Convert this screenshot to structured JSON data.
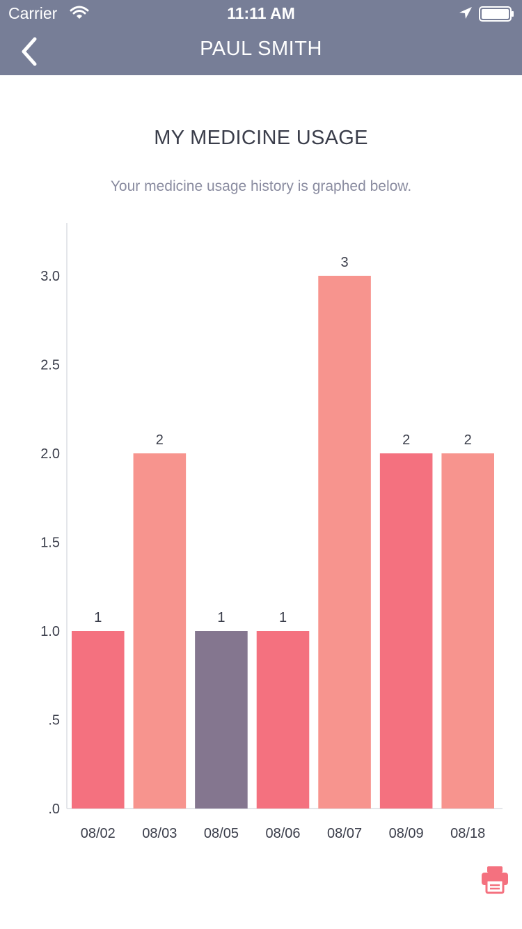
{
  "status_bar": {
    "carrier": "Carrier",
    "time": "11:11 AM",
    "icons": [
      "wifi-icon",
      "location-arrow-icon",
      "battery-icon"
    ]
  },
  "nav": {
    "title": "PAUL SMITH",
    "back_icon": "chevron-left-icon"
  },
  "page": {
    "title": "MY MEDICINE USAGE",
    "subtitle": "Your medicine usage history is graphed below."
  },
  "actions": {
    "print_icon": "printer-icon"
  },
  "colors": {
    "header": "#777e97",
    "accent": "#f4717f"
  },
  "chart_data": {
    "type": "bar",
    "categories": [
      "08/02",
      "08/03",
      "08/05",
      "08/06",
      "08/07",
      "08/09",
      "08/18"
    ],
    "values": [
      1,
      2,
      1,
      1,
      3,
      2,
      2
    ],
    "data_labels": [
      "1",
      "2",
      "1",
      "1",
      "3",
      "2",
      "2"
    ],
    "bar_colors": [
      "#f4717f",
      "#f7948e",
      "#84768f",
      "#f4717f",
      "#f7948e",
      "#f4717f",
      "#f7948e"
    ],
    "yticks": [
      ".0",
      ".5",
      "1.0",
      "1.5",
      "2.0",
      "2.5",
      "3.0"
    ],
    "ylim": [
      0,
      3.3
    ],
    "grid": false,
    "legend": "none"
  }
}
